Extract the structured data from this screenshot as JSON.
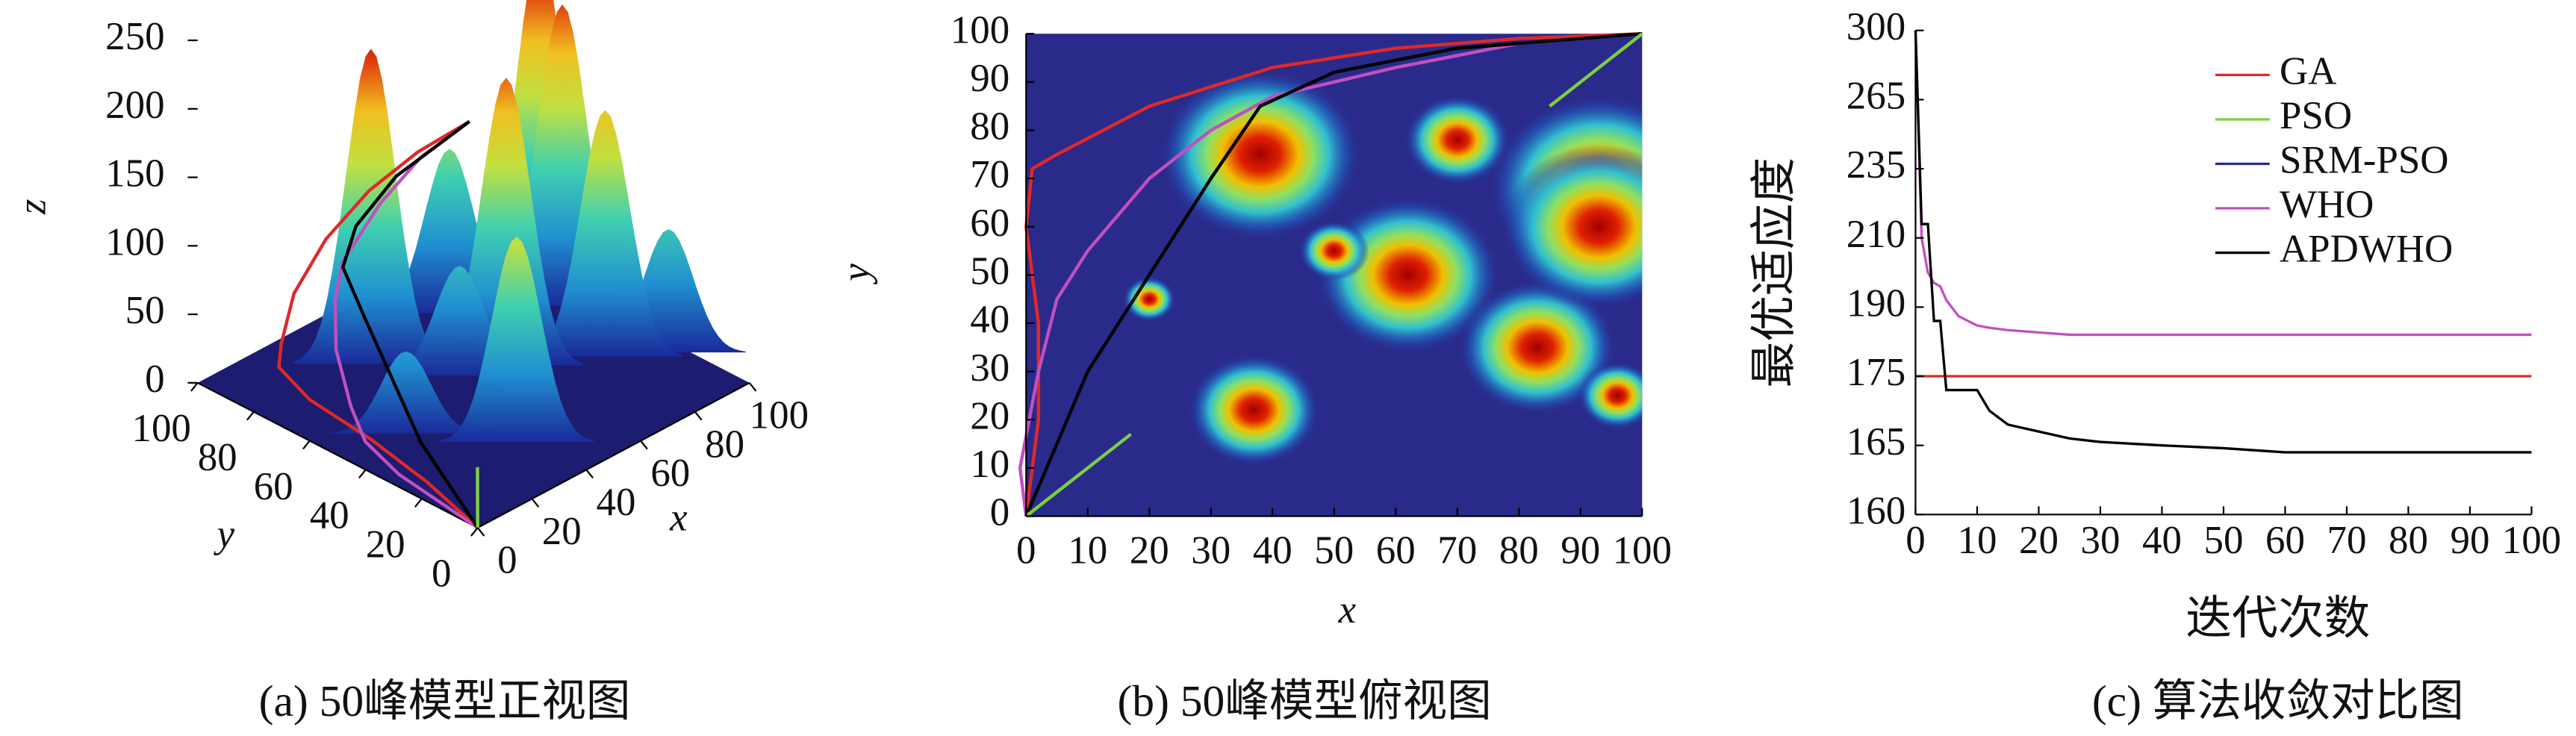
{
  "chart_data": [
    {
      "type": "surface3d",
      "caption": "(a) 50峰模型正视图",
      "xlabel": "x",
      "ylabel": "y",
      "zlabel": "z",
      "xlim": [
        0,
        100
      ],
      "ylim": [
        0,
        100
      ],
      "zlim": [
        0,
        250
      ],
      "xticks": [
        0,
        20,
        40,
        60,
        80,
        100
      ],
      "yticks": [
        0,
        20,
        40,
        60,
        80,
        100
      ],
      "zticks": [
        0,
        50,
        100,
        150,
        200,
        250
      ],
      "peaks": [
        {
          "x": 38,
          "y": 75,
          "z": 230
        },
        {
          "x": 62,
          "y": 50,
          "z": 210
        },
        {
          "x": 93,
          "y": 68,
          "z": 250
        },
        {
          "x": 83,
          "y": 35,
          "z": 180
        },
        {
          "x": 37,
          "y": 22,
          "z": 150
        },
        {
          "x": 93,
          "y": 60,
          "z": 220
        },
        {
          "x": 70,
          "y": 78,
          "z": 120
        },
        {
          "x": 20,
          "y": 45,
          "z": 60
        },
        {
          "x": 96,
          "y": 25,
          "z": 90
        },
        {
          "x": 50,
          "y": 55,
          "z": 80
        }
      ],
      "series": [
        {
          "color": "#e02828",
          "x": [
            0,
            2,
            2,
            0,
            1,
            5,
            20,
            40,
            60,
            80,
            100
          ],
          "y": [
            0,
            20,
            40,
            60,
            72,
            75,
            85,
            93,
            97,
            99,
            100
          ],
          "z": [
            0,
            10,
            20,
            30,
            40,
            50,
            60,
            70,
            80,
            85,
            85
          ]
        },
        {
          "color": "#c050c0",
          "x": [
            0,
            2,
            5,
            10,
            20,
            30,
            40,
            60,
            80,
            100
          ],
          "y": [
            0,
            30,
            45,
            55,
            70,
            80,
            87,
            93,
            98,
            100
          ],
          "z": [
            0,
            5,
            10,
            20,
            35,
            50,
            60,
            75,
            82,
            85
          ]
        },
        {
          "color": "#000000",
          "x": [
            0,
            5,
            10,
            20,
            30,
            38,
            50,
            70,
            100
          ],
          "y": [
            0,
            15,
            30,
            50,
            70,
            85,
            92,
            97,
            100
          ],
          "z": [
            0,
            10,
            20,
            35,
            50,
            60,
            70,
            80,
            85
          ]
        },
        {
          "color": "#7cd040",
          "x": [
            0,
            2
          ],
          "y": [
            0,
            2
          ],
          "z": [
            0,
            40
          ]
        }
      ]
    },
    {
      "type": "heatmap",
      "caption": "(b) 50峰模型俯视图",
      "xlabel": "x",
      "ylabel": "y",
      "xlim": [
        0,
        100
      ],
      "ylim": [
        0,
        100
      ],
      "xticks": [
        0,
        10,
        20,
        30,
        40,
        50,
        60,
        70,
        80,
        90,
        100
      ],
      "yticks": [
        0,
        10,
        20,
        30,
        40,
        50,
        60,
        70,
        80,
        90,
        100
      ],
      "peaks": [
        {
          "x": 38,
          "y": 75,
          "z": 230
        },
        {
          "x": 62,
          "y": 50,
          "z": 210
        },
        {
          "x": 93,
          "y": 68,
          "z": 250
        },
        {
          "x": 83,
          "y": 35,
          "z": 180
        },
        {
          "x": 37,
          "y": 22,
          "z": 150
        },
        {
          "x": 93,
          "y": 60,
          "z": 220
        },
        {
          "x": 70,
          "y": 78,
          "z": 120
        },
        {
          "x": 20,
          "y": 45,
          "z": 60
        },
        {
          "x": 96,
          "y": 25,
          "z": 90
        },
        {
          "x": 50,
          "y": 55,
          "z": 80
        }
      ],
      "series": [
        {
          "color": "#e02828",
          "x": [
            0,
            2,
            2,
            0,
            1,
            5,
            20,
            40,
            60,
            80,
            100
          ],
          "y": [
            0,
            20,
            40,
            60,
            72,
            75,
            85,
            93,
            97,
            99,
            100
          ]
        },
        {
          "color": "#c050c0",
          "x": [
            0,
            -1,
            2,
            5,
            10,
            20,
            30,
            40,
            60,
            80,
            100
          ],
          "y": [
            0,
            10,
            30,
            45,
            55,
            70,
            80,
            87,
            93,
            98,
            100
          ]
        },
        {
          "color": "#000000",
          "x": [
            0,
            5,
            10,
            20,
            30,
            38,
            50,
            70,
            100
          ],
          "y": [
            0,
            15,
            30,
            50,
            70,
            85,
            92,
            97,
            100
          ]
        },
        {
          "color": "#7cd040",
          "x": [
            0,
            17,
            null,
            85,
            100
          ],
          "y": [
            0,
            17,
            null,
            85,
            100
          ]
        }
      ]
    },
    {
      "type": "line",
      "caption": "(c) 算法收敛对比图",
      "xlabel": "迭代次数",
      "ylabel": "最优适应度",
      "xlim": [
        0,
        100
      ],
      "ylim": [
        160,
        300
      ],
      "xticks": [
        0,
        10,
        20,
        30,
        40,
        50,
        60,
        70,
        80,
        90,
        100
      ],
      "yticks": [
        160,
        165,
        175,
        190,
        210,
        235,
        265,
        300
      ],
      "x": [
        0,
        1,
        2,
        3,
        4,
        5,
        7,
        10,
        12,
        15,
        20,
        25,
        30,
        40,
        50,
        60,
        70,
        80,
        90,
        100
      ],
      "series": [
        {
          "name": "GA",
          "color": "#e02828",
          "values": [
            175,
            175,
            175,
            175,
            175,
            175,
            175,
            175,
            175,
            175,
            175,
            175,
            175,
            175,
            175,
            175,
            175,
            175,
            175,
            175
          ]
        },
        {
          "name": "PSO",
          "color": "#7cd040",
          "values": [
            null,
            null,
            null,
            null,
            null,
            null,
            null,
            null,
            null,
            null,
            null,
            null,
            null,
            null,
            null,
            null,
            null,
            null,
            null,
            null
          ]
        },
        {
          "name": "SRM-PSO",
          "color": "#2a2a90",
          "values": [
            null,
            null,
            null,
            null,
            null,
            null,
            null,
            null,
            null,
            null,
            null,
            null,
            null,
            null,
            null,
            null,
            null,
            null,
            null,
            null
          ]
        },
        {
          "name": "WHO",
          "color": "#c050c0",
          "values": [
            300,
            210,
            200,
            197,
            196,
            192,
            188,
            186,
            185.5,
            185,
            184.5,
            184,
            184,
            184,
            184,
            184,
            184,
            184,
            184,
            184
          ]
        },
        {
          "name": "APDWHO",
          "color": "#000000",
          "values": [
            300,
            215,
            215,
            187,
            187,
            173,
            173,
            173,
            170,
            168,
            167,
            166,
            165.5,
            165,
            164.8,
            164.5,
            164.5,
            164.5,
            164.5,
            164.5
          ]
        }
      ]
    }
  ]
}
